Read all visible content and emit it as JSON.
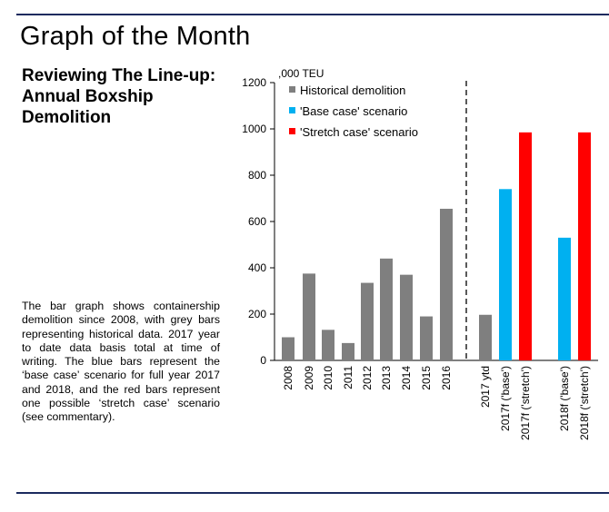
{
  "page": {
    "title": "Graph of the Month",
    "headline": "Reviewing The Line-up: Annual Boxship Demolition",
    "caption": "The bar graph shows containership demolition since 2008, with grey bars representing historical data. 2017 year to date data basis total at time of writing. The blue bars represent the ‘base case’ scenario for full year 2017 and 2018, and the red bars represent one possible ‘stretch case’ scenario (see commentary)."
  },
  "colors": {
    "historical": "#7f7f7f",
    "base": "#00b0f0",
    "stretch": "#ff0000",
    "rule": "#1b2a5e"
  },
  "chart_data": {
    "type": "bar",
    "unit_label": ",000 TEU",
    "ylim": [
      0,
      1200
    ],
    "yticks": [
      0,
      200,
      400,
      600,
      800,
      1000,
      1200
    ],
    "legend": [
      {
        "label": "Historical demolition",
        "series": "historical"
      },
      {
        "label": "'Base case' scenario",
        "series": "base"
      },
      {
        "label": "'Stretch case' scenario",
        "series": "stretch"
      }
    ],
    "legend_position": "top-left",
    "divider_after": "2016",
    "bars": [
      {
        "label": "2008",
        "value": 100,
        "series": "historical"
      },
      {
        "label": "2009",
        "value": 375,
        "series": "historical"
      },
      {
        "label": "2010",
        "value": 132,
        "series": "historical"
      },
      {
        "label": "2011",
        "value": 75,
        "series": "historical"
      },
      {
        "label": "2012",
        "value": 335,
        "series": "historical"
      },
      {
        "label": "2013",
        "value": 440,
        "series": "historical"
      },
      {
        "label": "2014",
        "value": 370,
        "series": "historical"
      },
      {
        "label": "2015",
        "value": 190,
        "series": "historical"
      },
      {
        "label": "2016",
        "value": 655,
        "series": "historical"
      },
      {
        "label": "2017 ytd",
        "value": 197,
        "series": "historical"
      },
      {
        "label": "2017f ('base')",
        "value": 740,
        "series": "base"
      },
      {
        "label": "2017f ('stretch')",
        "value": 985,
        "series": "stretch"
      },
      {
        "label": "2018f ('base')",
        "value": 530,
        "series": "base"
      },
      {
        "label": "2018f ('stretch')",
        "value": 985,
        "series": "stretch"
      }
    ]
  }
}
